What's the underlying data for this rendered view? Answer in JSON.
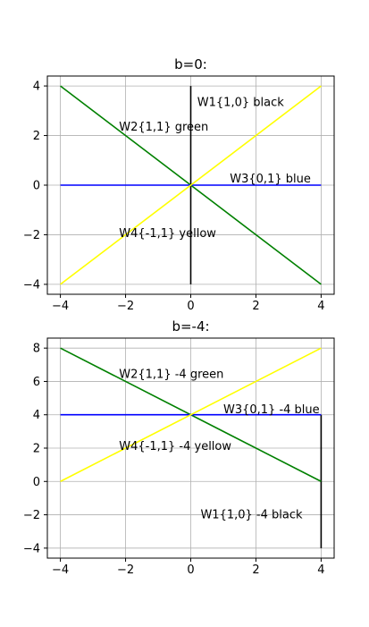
{
  "chart_data": [
    {
      "type": "line",
      "title": "b=0:",
      "xlim": [
        -4.4,
        4.4
      ],
      "ylim": [
        -4.4,
        4.4
      ],
      "xticks": [
        -4,
        -2,
        0,
        2,
        4
      ],
      "yticks": [
        -4,
        -2,
        0,
        2,
        4
      ],
      "xtick_labels": [
        "−4",
        "−2",
        "0",
        "2",
        "4"
      ],
      "ytick_labels": [
        "−4",
        "−2",
        "0",
        "2",
        "4"
      ],
      "grid": true,
      "series": [
        {
          "key": "w1",
          "color": "#000000",
          "x": [
            0,
            0
          ],
          "y": [
            -4,
            4
          ]
        },
        {
          "key": "w2",
          "color": "#008000",
          "x": [
            -4,
            4
          ],
          "y": [
            4,
            -4
          ]
        },
        {
          "key": "w3",
          "color": "#0000ff",
          "x": [
            -4,
            4
          ],
          "y": [
            0,
            0
          ]
        },
        {
          "key": "w4",
          "color": "#ffff00",
          "x": [
            -4,
            4
          ],
          "y": [
            -4,
            4
          ]
        }
      ],
      "annotations": [
        {
          "text": "W1{1,0} black",
          "x": 0.2,
          "y": 3.2
        },
        {
          "text": "W2{1,1} green",
          "x": -2.2,
          "y": 2.2
        },
        {
          "text": "W3{0,1} blue",
          "x": 1.2,
          "y": 0.1
        },
        {
          "text": "W4{-1,1} yellow",
          "x": -2.2,
          "y": -2.1
        }
      ]
    },
    {
      "type": "line",
      "title": "b=-4:",
      "xlim": [
        -4.4,
        4.4
      ],
      "ylim": [
        -4.6,
        8.6
      ],
      "xticks": [
        -4,
        -2,
        0,
        2,
        4
      ],
      "yticks": [
        -4,
        -2,
        0,
        2,
        4,
        6,
        8
      ],
      "xtick_labels": [
        "−4",
        "−2",
        "0",
        "2",
        "4"
      ],
      "ytick_labels": [
        "−4",
        "−2",
        "0",
        "2",
        "4",
        "6",
        "8"
      ],
      "grid": true,
      "series": [
        {
          "key": "w1",
          "color": "#000000",
          "x": [
            4,
            4
          ],
          "y": [
            -4,
            4
          ]
        },
        {
          "key": "w2",
          "color": "#008000",
          "x": [
            -4,
            4
          ],
          "y": [
            8,
            0
          ]
        },
        {
          "key": "w3",
          "color": "#0000ff",
          "x": [
            -4,
            4
          ],
          "y": [
            4,
            4
          ]
        },
        {
          "key": "w4",
          "color": "#ffff00",
          "x": [
            -4,
            4
          ],
          "y": [
            0,
            8
          ]
        }
      ],
      "annotations": [
        {
          "text": "W2{1,1} -4 green",
          "x": -2.2,
          "y": 6.2
        },
        {
          "text": "W3{0,1} -4 blue",
          "x": 1.0,
          "y": 4.1
        },
        {
          "text": "W4{-1,1} -4 yellow",
          "x": -2.2,
          "y": 1.9
        },
        {
          "text": "W1{1,0} -4 black",
          "x": 0.3,
          "y": -2.2
        }
      ]
    }
  ]
}
